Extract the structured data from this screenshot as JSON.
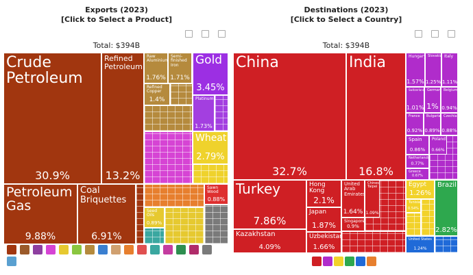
{
  "chart_data": [
    {
      "type": "treemap",
      "title": "Exports (2023)",
      "subtitle": "[Click to Select a Product]",
      "total": "Total: $394B",
      "categories": [
        "Crude Petroleum",
        "Refined Petroleum",
        "Petroleum Gas",
        "Coal Briquettes",
        "Raw Aluminium",
        "Semi-finished Iron",
        "Refined Copper",
        "Gold",
        "Platinum",
        "Wheat",
        "Seed Oils",
        "Sawn Wood"
      ],
      "values": [
        30.9,
        13.2,
        9.88,
        6.91,
        1.76,
        1.71,
        1.4,
        3.45,
        1.73,
        2.79,
        0.89,
        0.88
      ],
      "value_labels": [
        "30.9%",
        "13.2%",
        "9.88%",
        "6.91%",
        "1.76%",
        "1.71%",
        "1.4%",
        "3.45%",
        "1.73%",
        "2.79%",
        "0.89%",
        "0.88%"
      ],
      "colors": [
        "#a1360f",
        "#a1360f",
        "#a1360f",
        "#a1360f",
        "#b58a3d",
        "#b58a3d",
        "#b58a3d",
        "#9c2fe3",
        "#a33fe0",
        "#efd22c",
        "#e6c930",
        "#de2f2f"
      ]
    },
    {
      "type": "treemap",
      "title": "Destinations (2023)",
      "subtitle": "[Click to Select a Country]",
      "total": "Total: $394B",
      "categories": [
        "China",
        "India",
        "Turkey",
        "Kazakhstan",
        "Hong Kong",
        "Japan",
        "Uzbekistan",
        "United Arab Emirates",
        "Singapore",
        "Chinese Taipei",
        "Hungary",
        "Slovakia",
        "Italy",
        "Switzerland",
        "Germany",
        "Belgium",
        "France",
        "Bulgaria",
        "Czechia",
        "Spain",
        "Poland",
        "Netherlands",
        "Greece",
        "Egypt",
        "Tunisia",
        "Brazil",
        "United States"
      ],
      "values": [
        32.7,
        16.8,
        7.86,
        4.09,
        2.1,
        1.87,
        1.66,
        1.64,
        0.9,
        1.09,
        1.57,
        1.25,
        1.11,
        1.01,
        1,
        0.94,
        0.92,
        0.89,
        0.88,
        0.86,
        0.66,
        0.77,
        0.67,
        1.26,
        0.54,
        2.82,
        1.24
      ],
      "value_labels": [
        "32.7%",
        "16.8%",
        "7.86%",
        "4.09%",
        "2.1%",
        "1.87%",
        "1.66%",
        "1.64%",
        "0.9%",
        "1.09%",
        "1.57%",
        "1.25%",
        "1.11%",
        "1.01%",
        "1%",
        "0.94%",
        "0.92%",
        "0.89%",
        "0.88%",
        "0.86%",
        "0.66%",
        "0.77%",
        "0.67%",
        "1.26%",
        "0.54%",
        "2.82%",
        "1.24%"
      ],
      "colors": [
        "#cf1f24",
        "#cf1f24",
        "#cf1f24",
        "#cf1f24",
        "#cf1f24",
        "#cf1f24",
        "#cf1f24",
        "#cf1f24",
        "#cf1f24",
        "#cf1f24",
        "#b02ccb",
        "#b02ccb",
        "#b02ccb",
        "#b02ccb",
        "#b02ccb",
        "#b02ccb",
        "#b02ccb",
        "#b02ccb",
        "#b02ccb",
        "#b02ccb",
        "#b02ccb",
        "#b02ccb",
        "#b02ccb",
        "#f2d22a",
        "#f2d22a",
        "#2ea84e",
        "#1f6ad8"
      ]
    }
  ]
}
